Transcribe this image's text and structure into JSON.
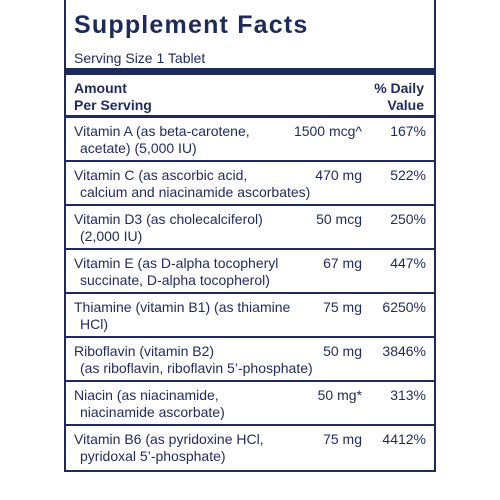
{
  "header": {
    "title": "Supplement Facts",
    "serving": "Serving Size 1 Tablet"
  },
  "table": {
    "columns": {
      "amount": [
        "Amount",
        "Per Serving"
      ],
      "daily_value": [
        "% Daily",
        "Value"
      ]
    },
    "rows": [
      {
        "name": [
          "Vitamin A (as beta-carotene,",
          "acetate) (5,000 IU)"
        ],
        "amount": "1500 mcg^",
        "dv": "167%"
      },
      {
        "name": [
          "Vitamin C (as ascorbic acid,",
          "calcium and niacinamide ascorbates)"
        ],
        "amount": "470 mg",
        "dv": "522%"
      },
      {
        "name": [
          "Vitamin D3 (as cholecalciferol)",
          "(2,000 IU)"
        ],
        "amount": "50 mcg",
        "dv": "250%"
      },
      {
        "name": [
          "Vitamin E (as D-alpha tocopheryl",
          "succinate, D-alpha tocopherol)"
        ],
        "amount": "67 mg",
        "dv": "447%"
      },
      {
        "name": [
          "Thiamine (vitamin B1) (as thiamine",
          "HCl)"
        ],
        "amount": "75 mg",
        "dv": "6250%"
      },
      {
        "name": [
          "Riboflavin (vitamin B2)",
          "(as riboflavin, riboflavin 5’-phosphate)"
        ],
        "amount": "50 mg",
        "dv": "3846%"
      },
      {
        "name": [
          "Niacin (as niacinamide,",
          "niacinamide ascorbate)"
        ],
        "amount": "50 mg*",
        "dv": "313%"
      },
      {
        "name": [
          "Vitamin B6 (as pyridoxine HCl,",
          "pyridoxal 5’-phosphate)"
        ],
        "amount": "75 mg",
        "dv": "4412%"
      }
    ]
  }
}
